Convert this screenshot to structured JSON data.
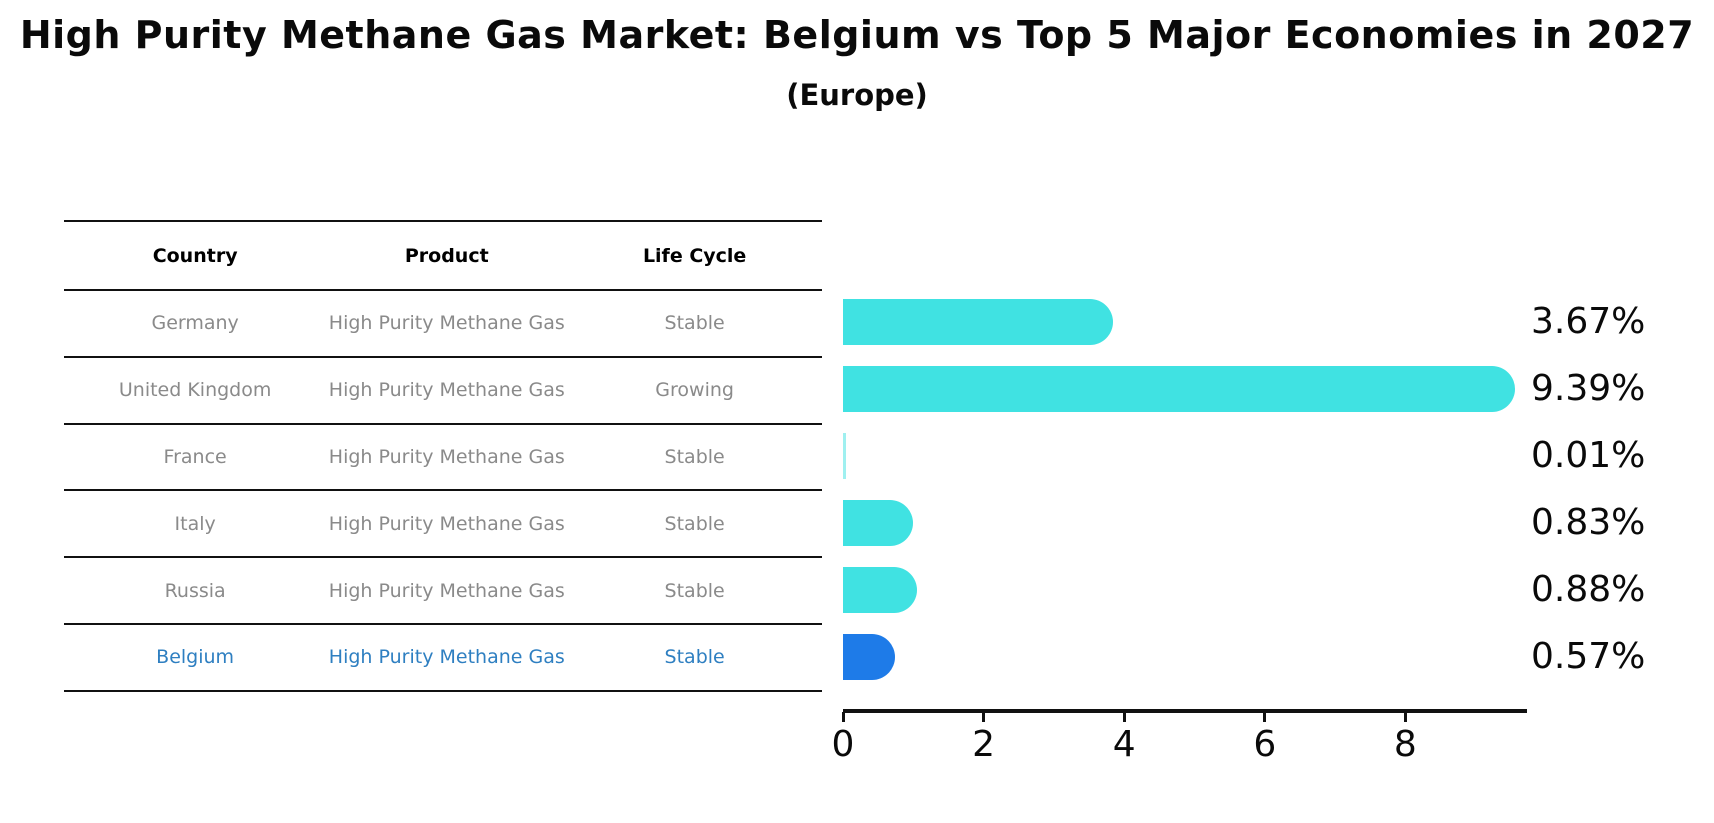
{
  "header": {
    "title": "High Purity Methane Gas Market: Belgium vs Top 5 Major Economies in 2027",
    "subtitle": "(Europe)"
  },
  "table": {
    "headers": [
      "Country",
      "Product",
      "Life Cycle"
    ],
    "rows": [
      {
        "country": "Germany",
        "product": "High Purity Methane Gas",
        "life_cycle": "Stable",
        "highlight": false
      },
      {
        "country": "United Kingdom",
        "product": "High Purity Methane Gas",
        "life_cycle": "Growing",
        "highlight": false
      },
      {
        "country": "France",
        "product": "High Purity Methane Gas",
        "life_cycle": "Stable",
        "highlight": false
      },
      {
        "country": "Italy",
        "product": "High Purity Methane Gas",
        "life_cycle": "Stable",
        "highlight": false
      },
      {
        "country": "Russia",
        "product": "High Purity Methane Gas",
        "life_cycle": "Stable",
        "highlight": false
      },
      {
        "country": "Belgium",
        "product": "High Purity Methane Gas",
        "life_cycle": "Stable",
        "highlight": true
      }
    ]
  },
  "chart_data": {
    "type": "bar",
    "orientation": "horizontal",
    "title": "High Purity Methane Gas Market: Belgium vs Top 5 Major Economies in 2027 (Europe)",
    "categories": [
      "Germany",
      "United Kingdom",
      "France",
      "Italy",
      "Russia",
      "Belgium"
    ],
    "values": [
      3.67,
      9.39,
      0.01,
      0.83,
      0.88,
      0.57
    ],
    "value_labels": [
      "3.67%",
      "9.39%",
      "0.01%",
      "0.83%",
      "0.88%",
      "0.57%"
    ],
    "xticks": [
      0,
      2,
      4,
      6,
      8
    ],
    "xlim": [
      0,
      9.73
    ],
    "grid": false,
    "legend": false,
    "bar_color": "#40E2E2",
    "highlight_color": "#1E7BE8",
    "highlight_text_color": "#2E7FC1",
    "highlight_index": 5,
    "highlight_border_style": "dotted"
  }
}
